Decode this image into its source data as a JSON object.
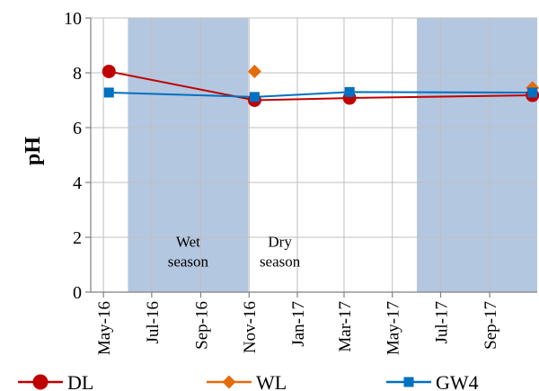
{
  "chart_data": {
    "type": "line",
    "title": "",
    "xlabel": "",
    "ylabel": "pH",
    "ylim": [
      0,
      10
    ],
    "yticks": [
      "0",
      "2",
      "4",
      "6",
      "8",
      "10"
    ],
    "xlim": [
      "2016-04-15",
      "2017-10-31"
    ],
    "xticks": [
      {
        "date": "2016-05-01",
        "label": "May-16"
      },
      {
        "date": "2016-07-01",
        "label": "Jul-16"
      },
      {
        "date": "2016-09-01",
        "label": "Sep-16"
      },
      {
        "date": "2016-11-01",
        "label": "Nov-16"
      },
      {
        "date": "2017-01-01",
        "label": "Jan-17"
      },
      {
        "date": "2017-03-01",
        "label": "Mar-17"
      },
      {
        "date": "2017-05-01",
        "label": "May-17"
      },
      {
        "date": "2017-07-01",
        "label": "Jul-17"
      },
      {
        "date": "2017-09-01",
        "label": "Sep-17"
      }
    ],
    "grid": true,
    "legend_position": "bottom",
    "shaded_periods": [
      {
        "start": "2016-06-01",
        "end": "2016-10-31",
        "label": "Wet season",
        "label_lines": [
          "Wet",
          "season"
        ]
      },
      {
        "start": "2017-06-01",
        "end": "2017-10-31",
        "label": "",
        "label_lines": []
      }
    ],
    "annotations": [
      {
        "text": "Dry season",
        "lines": [
          "Dry",
          "season"
        ],
        "at_date": "2016-12-10",
        "y": 1.3
      }
    ],
    "series": [
      {
        "name": "DL",
        "color": "#C00000",
        "marker": "circle",
        "line": true,
        "points": [
          {
            "x": "2016-05-08",
            "y": 8.05
          },
          {
            "x": "2016-11-08",
            "y": 7.0
          },
          {
            "x": "2017-03-08",
            "y": 7.08
          },
          {
            "x": "2017-10-25",
            "y": 7.18
          }
        ]
      },
      {
        "name": "WL",
        "color": "#E46C0A",
        "marker": "diamond",
        "line": false,
        "points": [
          {
            "x": "2016-11-08",
            "y": 8.05
          },
          {
            "x": "2017-10-25",
            "y": 7.45
          }
        ]
      },
      {
        "name": "GW4",
        "color": "#0070C0",
        "marker": "square",
        "line": true,
        "points": [
          {
            "x": "2016-05-08",
            "y": 7.28
          },
          {
            "x": "2016-11-08",
            "y": 7.12
          },
          {
            "x": "2017-03-08",
            "y": 7.3
          },
          {
            "x": "2017-10-25",
            "y": 7.28
          }
        ]
      }
    ]
  },
  "colors": {
    "shade": "#B4C7E0",
    "grid": "#BFBFBF",
    "axis": "#000000"
  }
}
